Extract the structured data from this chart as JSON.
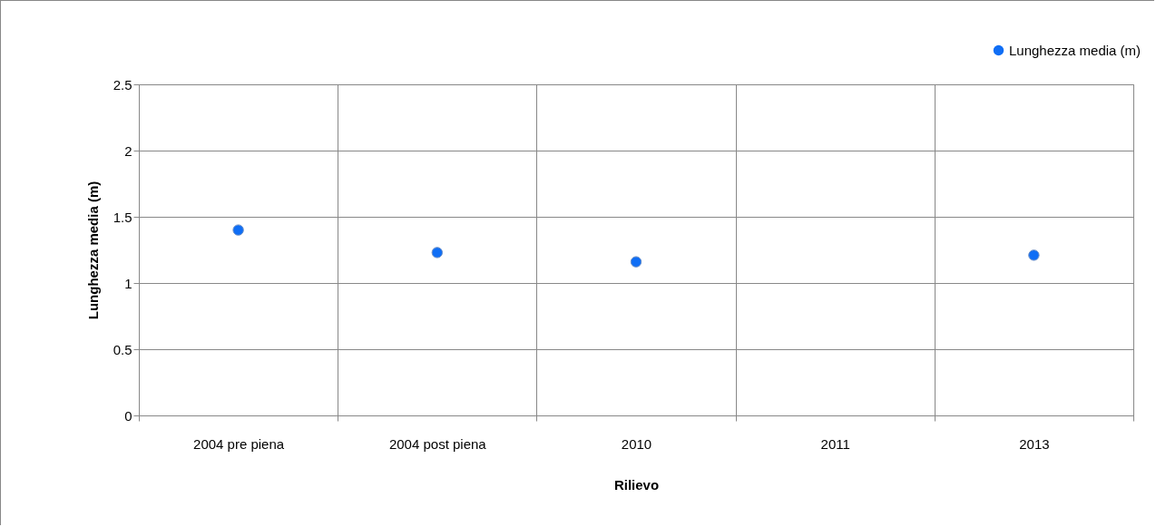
{
  "chart_data": {
    "type": "scatter",
    "xlabel": "Rilievo",
    "ylabel": "Lunghezza media (m)",
    "categories": [
      "2004 pre piena",
      "2004 post piena",
      "2010",
      "2011",
      "2013"
    ],
    "series": [
      {
        "name": "Lunghezza media (m)",
        "color": "#0f6ef5",
        "values": [
          1.4,
          1.23,
          1.16,
          null,
          1.21
        ]
      }
    ],
    "ylim": [
      0,
      2.5
    ],
    "yticks": [
      0,
      0.5,
      1,
      1.5,
      2,
      2.5
    ],
    "grid": true,
    "legend": "top right",
    "marker": "circle"
  }
}
